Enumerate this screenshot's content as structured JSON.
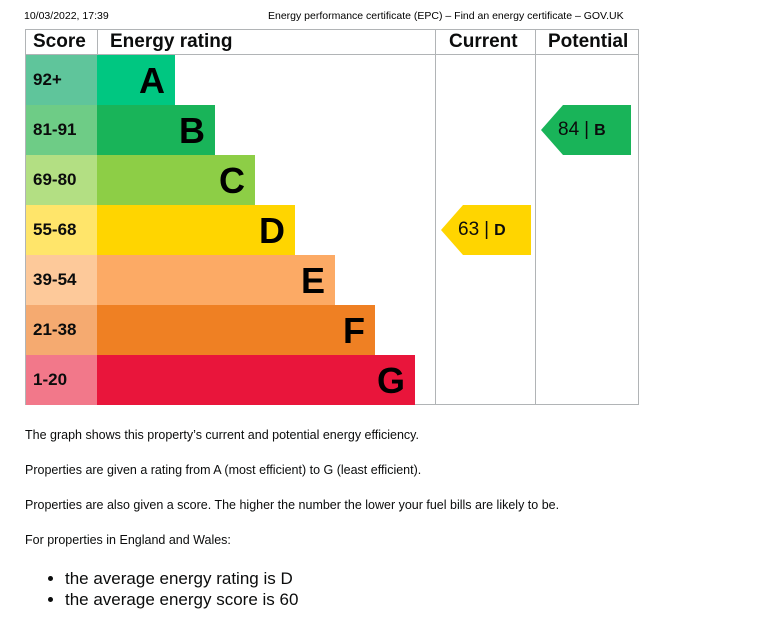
{
  "header": {
    "datetime": "10/03/2022, 17:39",
    "page_title": "Energy performance certificate (EPC) – Find an energy certificate – GOV.UK"
  },
  "chart": {
    "columns": {
      "score": "Score",
      "rating": "Energy rating",
      "current": "Current",
      "potential": "Potential"
    },
    "bands": [
      {
        "score": "92+",
        "letter": "A",
        "score_bg": "#5fc59b",
        "bar": "#00c781"
      },
      {
        "score": "81-91",
        "letter": "B",
        "score_bg": "#6ecc86",
        "bar": "#19b459"
      },
      {
        "score": "69-80",
        "letter": "C",
        "score_bg": "#b3df83",
        "bar": "#8dce46"
      },
      {
        "score": "55-68",
        "letter": "D",
        "score_bg": "#ffe56a",
        "bar": "#ffd500"
      },
      {
        "score": "39-54",
        "letter": "E",
        "score_bg": "#fdc99a",
        "bar": "#fcaa65"
      },
      {
        "score": "21-38",
        "letter": "F",
        "score_bg": "#f5aa70",
        "bar": "#ef8023"
      },
      {
        "score": "1-20",
        "letter": "G",
        "score_bg": "#f2788a",
        "bar": "#e9153b"
      }
    ],
    "current": {
      "score": "63",
      "separator": "|",
      "letter": "D",
      "color": "#ffd500"
    },
    "potential": {
      "score": "84",
      "separator": "|",
      "letter": "B",
      "color": "#19b459"
    }
  },
  "content": {
    "p1": "The graph shows this property’s current and potential energy efficiency.",
    "p2": "Properties are given a rating from A (most efficient) to G (least efficient).",
    "p3": "Properties are also given a score. The higher the number the lower your fuel bills are likely to be.",
    "p4": "For properties in England and Wales:",
    "list": [
      "the average energy rating is D",
      "the average energy score is 60"
    ]
  }
}
